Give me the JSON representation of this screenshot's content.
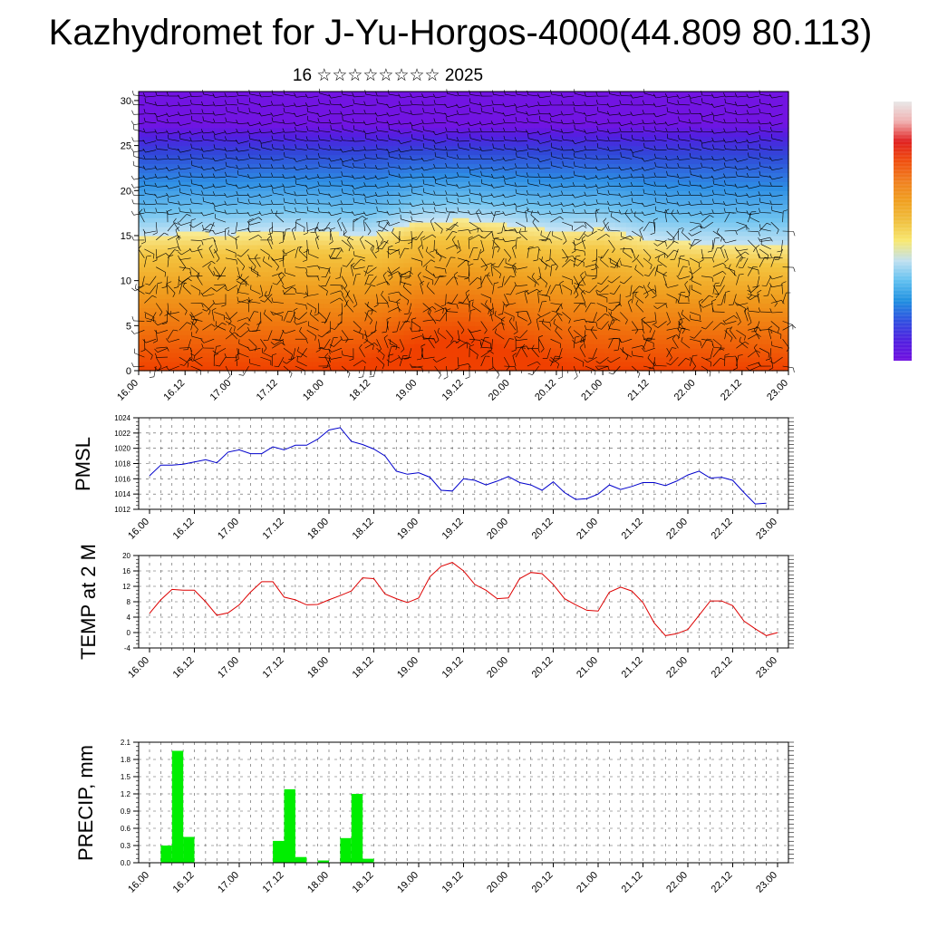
{
  "title": "Kazhydromet for J-Yu-Horgos-4000(44.809 80.113)",
  "subtitle": "16 ☆☆☆☆☆☆☆☆ 2025",
  "x_tick_labels": [
    "16.00",
    "16.12",
    "17.00",
    "17.12",
    "18.00",
    "18.12",
    "19.00",
    "19.12",
    "20.00",
    "20.12",
    "21.00",
    "21.12",
    "22.00",
    "22.12",
    "23.00"
  ],
  "colorbar": {
    "colors": [
      "#e8e8e8",
      "#f0b0b0",
      "#e02020",
      "#f05010",
      "#f08020",
      "#f0a020",
      "#f0c040",
      "#f8e870",
      "#c0e0f0",
      "#60c0f0",
      "#2090e0",
      "#3050e0",
      "#5020e0",
      "#7010e0"
    ]
  },
  "chart_data": [
    {
      "type": "heatmap",
      "description_of_field": "vertical cross-section with wind barbs",
      "x_ticks": [
        "16.00",
        "16.12",
        "17.00",
        "17.12",
        "18.00",
        "18.12",
        "19.00",
        "19.12",
        "20.00",
        "20.12",
        "21.00",
        "21.12",
        "22.00",
        "22.12",
        "23.00"
      ],
      "y_ticks": [
        0,
        5,
        10,
        15,
        20,
        25,
        30
      ],
      "ylim": [
        0,
        31
      ],
      "warm_cold_boundary_level": [
        15.0,
        15.3,
        15.2,
        15.6,
        15.4,
        15.0,
        16.6,
        16.8,
        16.2,
        15.6,
        15.8,
        14.6,
        14.2,
        14.0,
        13.8
      ]
    },
    {
      "type": "line",
      "ylabel": "PMSL",
      "ylim": [
        1012,
        1024
      ],
      "y_ticks": [
        1012,
        1014,
        1016,
        1018,
        1020,
        1022,
        1024
      ],
      "color": "#0000cc",
      "x_hours": [
        0,
        3,
        6,
        9,
        12,
        15,
        18,
        21,
        24,
        27,
        30,
        33,
        36,
        39,
        42,
        45,
        48,
        51,
        54,
        57,
        60,
        63,
        66,
        69,
        72,
        75,
        78,
        81,
        84,
        87,
        90,
        93,
        96,
        99,
        102,
        105,
        108,
        111,
        114,
        117,
        120,
        123,
        126,
        129,
        132,
        135,
        138,
        141,
        144,
        147,
        150,
        153,
        156,
        159,
        162
      ],
      "values": [
        1016.4,
        1017.8,
        1017.8,
        1017.9,
        1018.2,
        1018.5,
        1018.1,
        1019.5,
        1019.8,
        1019.3,
        1019.3,
        1020.2,
        1019.8,
        1020.4,
        1020.4,
        1021.2,
        1022.4,
        1022.7,
        1020.9,
        1020.5,
        1019.9,
        1019.0,
        1017.0,
        1016.6,
        1016.8,
        1016.2,
        1014.5,
        1014.4,
        1016.0,
        1015.8,
        1015.2,
        1015.7,
        1016.3,
        1015.5,
        1015.2,
        1014.5,
        1015.6,
        1014.2,
        1013.3,
        1013.4,
        1014.0,
        1015.2,
        1014.6,
        1015.0,
        1015.5,
        1015.5,
        1015.1,
        1015.7,
        1016.5,
        1017.0,
        1016.1,
        1016.2,
        1015.8,
        1014.2,
        1012.7
      ],
      "x_end_hours": [
        165
      ],
      "end_value": [
        1012.8
      ]
    },
    {
      "type": "line",
      "ylabel": "TEMP at 2 M",
      "ylim": [
        -4,
        20
      ],
      "y_ticks": [
        -4,
        0,
        4,
        8,
        12,
        16,
        20
      ],
      "color": "#dd0000",
      "x_hours": [
        0,
        3,
        6,
        9,
        12,
        15,
        18,
        21,
        24,
        27,
        30,
        33,
        36,
        39,
        42,
        45,
        48,
        51,
        54,
        57,
        60,
        63,
        66,
        69,
        72,
        75,
        78,
        81,
        84,
        87,
        90,
        93,
        96,
        99,
        102,
        105,
        108,
        111,
        114,
        117,
        120,
        123,
        126,
        129,
        132,
        135,
        138,
        141,
        144,
        147,
        150,
        153,
        156,
        159,
        162
      ],
      "values": [
        5.0,
        8.5,
        11.2,
        11.0,
        11.0,
        8.0,
        4.5,
        5.1,
        7.2,
        10.5,
        13.2,
        13.2,
        9.2,
        8.5,
        7.2,
        7.3,
        8.5,
        9.6,
        10.8,
        14.2,
        14.0,
        10.0,
        8.8,
        7.8,
        9.0,
        14.5,
        17.2,
        18.2,
        16.0,
        12.5,
        11.0,
        8.8,
        9.0,
        14.0,
        15.6,
        15.3,
        12.5,
        8.8,
        7.2,
        5.8,
        5.6,
        10.5,
        11.8,
        10.8,
        7.8,
        2.5,
        -0.8,
        -0.3,
        0.8,
        4.5,
        8.2,
        8.2,
        7.0,
        3.0,
        1.0
      ],
      "tail_hours": [
        165,
        168
      ],
      "tail_values": [
        -0.8,
        0.0
      ]
    },
    {
      "type": "bar",
      "ylabel": "PRECIP, mm",
      "ylim": [
        0,
        2.1
      ],
      "y_ticks": [
        "0.0",
        "0.3",
        "0.6",
        "0.9",
        "1.2",
        "1.5",
        "1.8",
        "2.1"
      ],
      "color": "#00ee00",
      "bins_start_hour": [
        3,
        6,
        9,
        33,
        36,
        39,
        45,
        51,
        54,
        57
      ],
      "values": [
        0.3,
        1.95,
        0.45,
        0.38,
        1.28,
        0.1,
        0.04,
        0.43,
        1.2,
        0.07
      ]
    }
  ]
}
